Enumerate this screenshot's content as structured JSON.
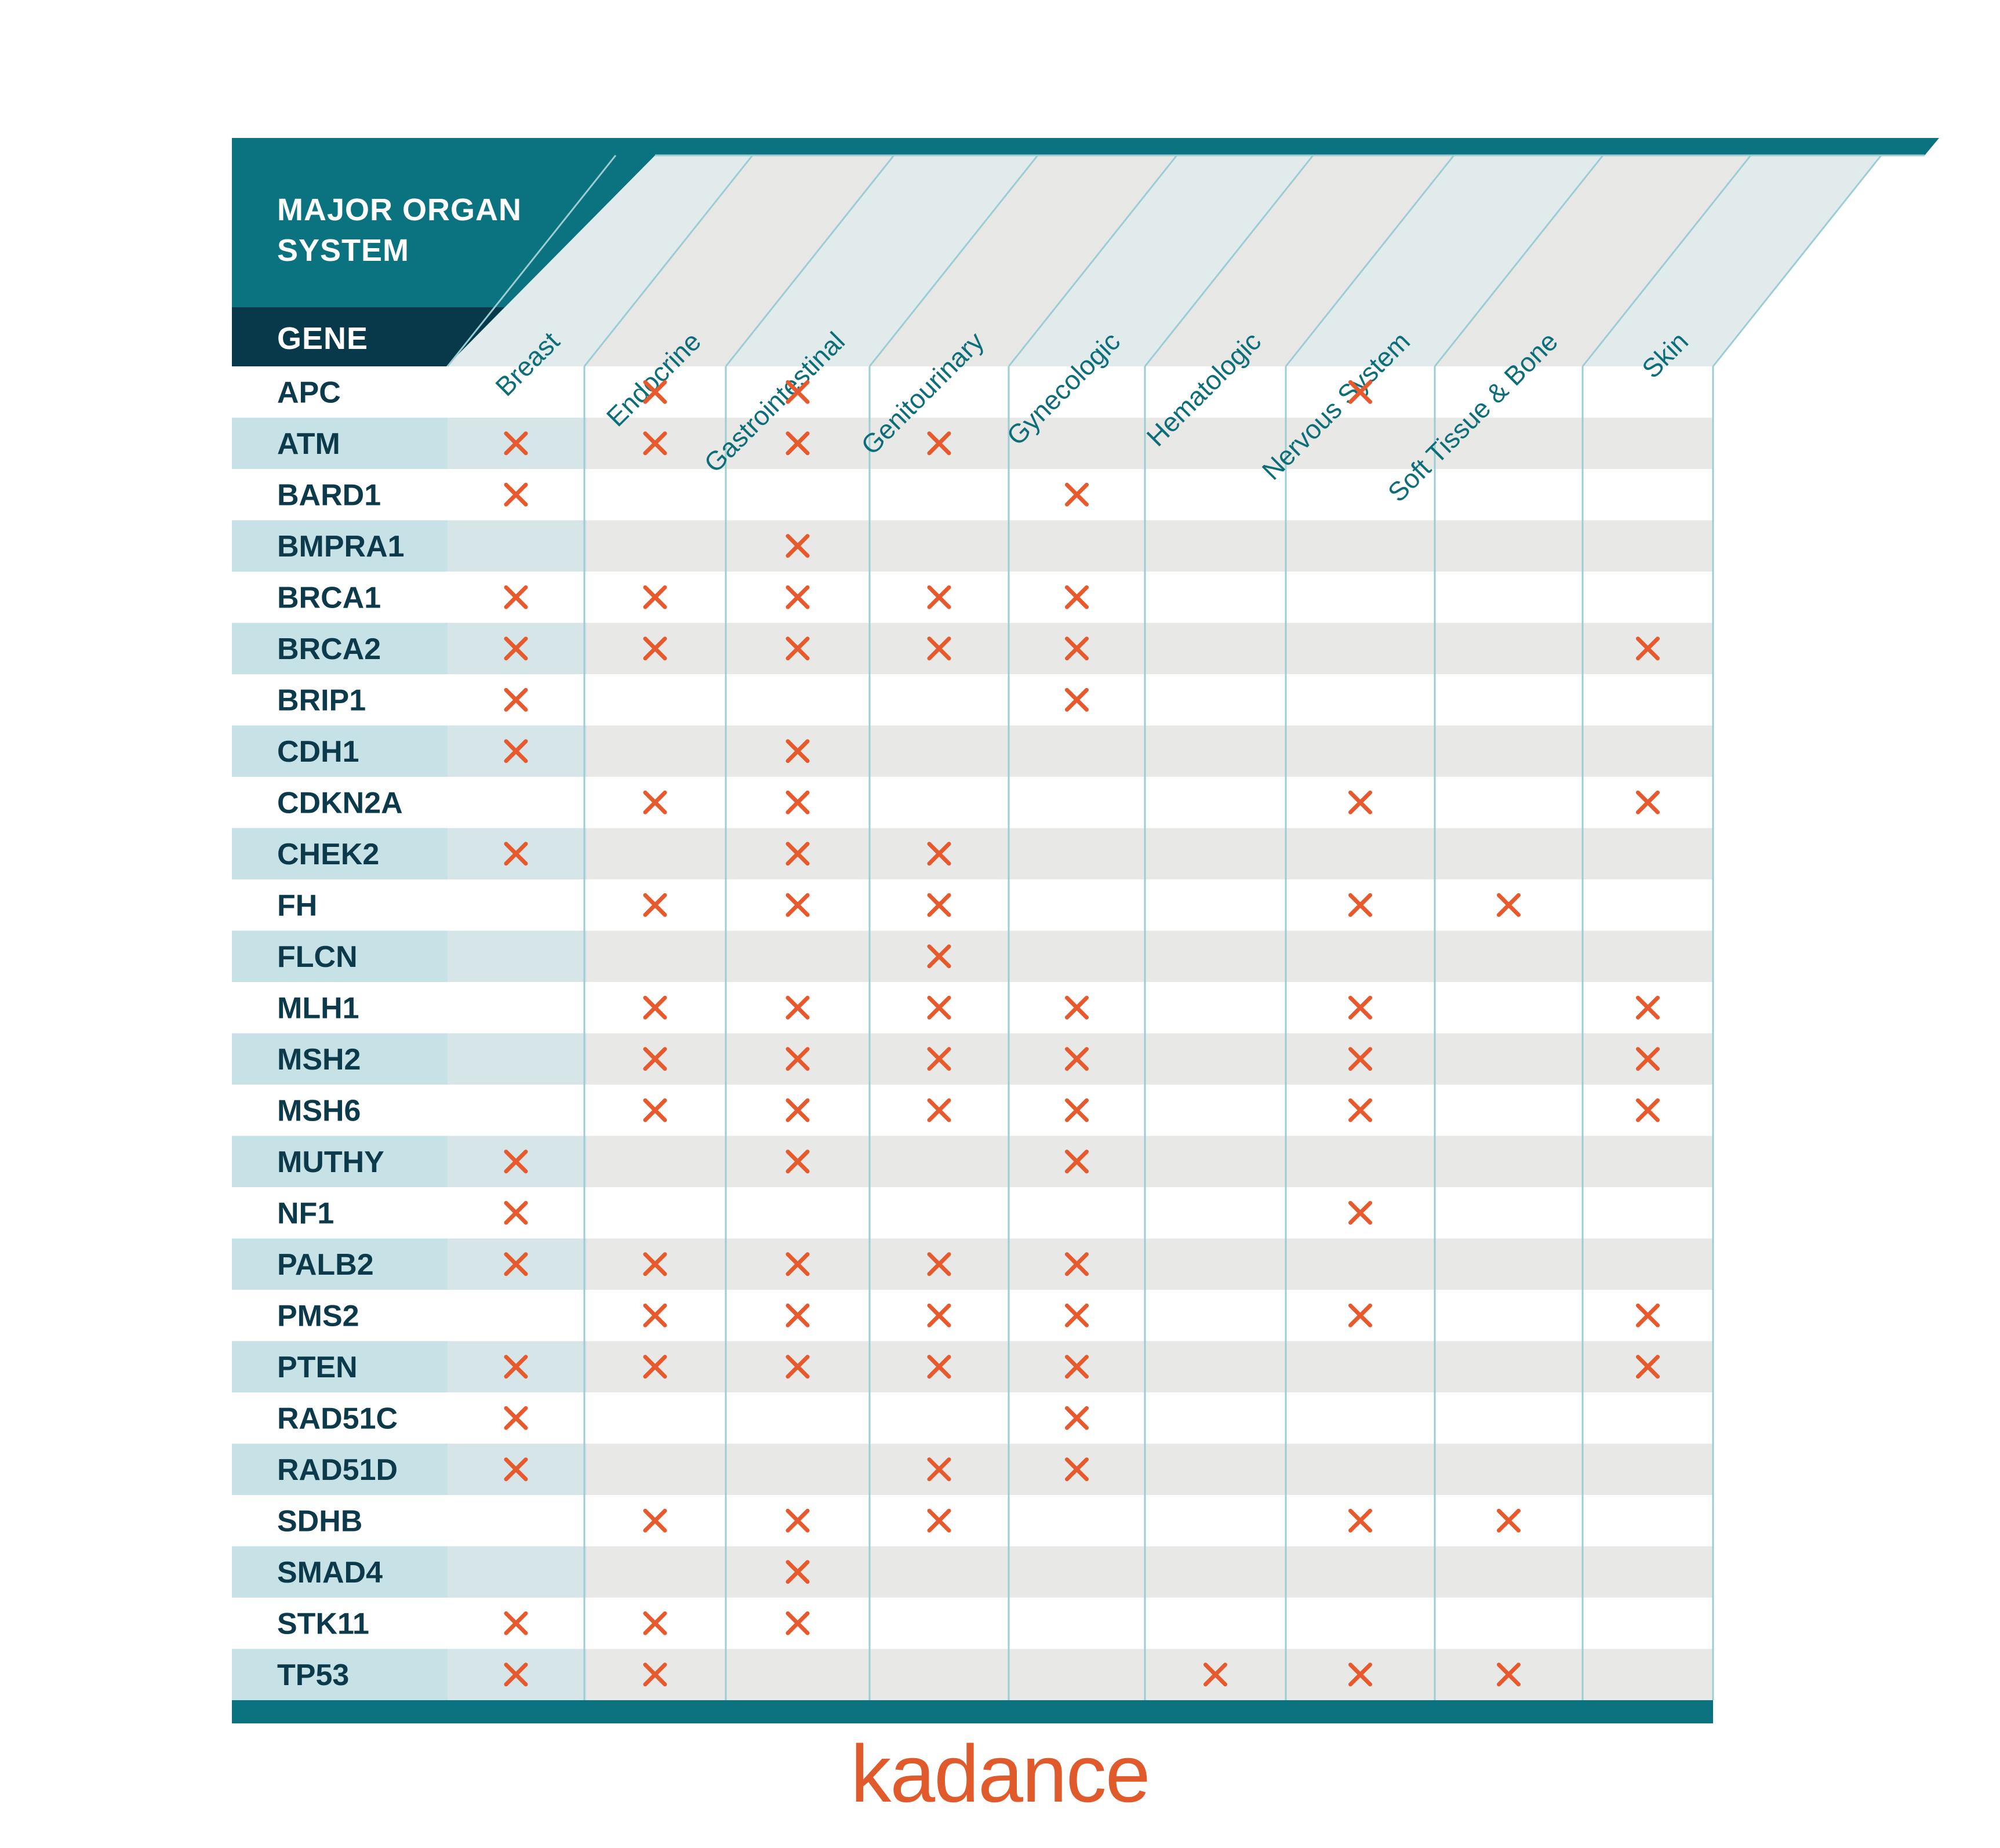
{
  "chart_data": {
    "type": "table",
    "header": {
      "title_line1": "MAJOR ORGAN",
      "title_line2": "SYSTEM",
      "row_header": "GENE"
    },
    "columns": [
      "Breast",
      "Endocrine",
      "Gastrointestinal",
      "Genitourinary",
      "Gynecologic",
      "Hematologic",
      "Nervous System",
      "Soft Tissue & Bone",
      "Skin"
    ],
    "rows": [
      {
        "gene": "APC",
        "marks": [
          0,
          1,
          1,
          0,
          0,
          0,
          1,
          0,
          0
        ]
      },
      {
        "gene": "ATM",
        "marks": [
          1,
          1,
          1,
          1,
          0,
          0,
          0,
          0,
          0
        ]
      },
      {
        "gene": "BARD1",
        "marks": [
          1,
          0,
          0,
          0,
          1,
          0,
          0,
          0,
          0
        ]
      },
      {
        "gene": "BMPRA1",
        "marks": [
          0,
          0,
          1,
          0,
          0,
          0,
          0,
          0,
          0
        ]
      },
      {
        "gene": "BRCA1",
        "marks": [
          1,
          1,
          1,
          1,
          1,
          0,
          0,
          0,
          0
        ]
      },
      {
        "gene": "BRCA2",
        "marks": [
          1,
          1,
          1,
          1,
          1,
          0,
          0,
          0,
          1
        ]
      },
      {
        "gene": "BRIP1",
        "marks": [
          1,
          0,
          0,
          0,
          1,
          0,
          0,
          0,
          0
        ]
      },
      {
        "gene": "CDH1",
        "marks": [
          1,
          0,
          1,
          0,
          0,
          0,
          0,
          0,
          0
        ]
      },
      {
        "gene": "CDKN2A",
        "marks": [
          0,
          1,
          1,
          0,
          0,
          0,
          1,
          0,
          1
        ]
      },
      {
        "gene": "CHEK2",
        "marks": [
          1,
          0,
          1,
          1,
          0,
          0,
          0,
          0,
          0
        ]
      },
      {
        "gene": "FH",
        "marks": [
          0,
          1,
          1,
          1,
          0,
          0,
          1,
          1,
          0
        ]
      },
      {
        "gene": "FLCN",
        "marks": [
          0,
          0,
          0,
          1,
          0,
          0,
          0,
          0,
          0
        ]
      },
      {
        "gene": "MLH1",
        "marks": [
          0,
          1,
          1,
          1,
          1,
          0,
          1,
          0,
          1
        ]
      },
      {
        "gene": "MSH2",
        "marks": [
          0,
          1,
          1,
          1,
          1,
          0,
          1,
          0,
          1
        ]
      },
      {
        "gene": "MSH6",
        "marks": [
          0,
          1,
          1,
          1,
          1,
          0,
          1,
          0,
          1
        ]
      },
      {
        "gene": "MUTHY",
        "marks": [
          1,
          0,
          1,
          0,
          1,
          0,
          0,
          0,
          0
        ]
      },
      {
        "gene": "NF1",
        "marks": [
          1,
          0,
          0,
          0,
          0,
          0,
          1,
          0,
          0
        ]
      },
      {
        "gene": "PALB2",
        "marks": [
          1,
          1,
          1,
          1,
          1,
          0,
          0,
          0,
          0
        ]
      },
      {
        "gene": "PMS2",
        "marks": [
          0,
          1,
          1,
          1,
          1,
          0,
          1,
          0,
          1
        ]
      },
      {
        "gene": "PTEN",
        "marks": [
          1,
          1,
          1,
          1,
          1,
          0,
          0,
          0,
          1
        ]
      },
      {
        "gene": "RAD51C",
        "marks": [
          1,
          0,
          0,
          0,
          1,
          0,
          0,
          0,
          0
        ]
      },
      {
        "gene": "RAD51D",
        "marks": [
          1,
          0,
          0,
          1,
          1,
          0,
          0,
          0,
          0
        ]
      },
      {
        "gene": "SDHB",
        "marks": [
          0,
          1,
          1,
          1,
          0,
          0,
          1,
          1,
          0
        ]
      },
      {
        "gene": "SMAD4",
        "marks": [
          0,
          0,
          1,
          0,
          0,
          0,
          0,
          0,
          0
        ]
      },
      {
        "gene": "STK11",
        "marks": [
          1,
          1,
          1,
          0,
          0,
          0,
          0,
          0,
          0
        ]
      },
      {
        "gene": "TP53",
        "marks": [
          1,
          1,
          0,
          0,
          0,
          1,
          1,
          1,
          0
        ]
      }
    ],
    "mark_symbol": "✕"
  },
  "colors": {
    "teal": "#0b7380",
    "dark_navy": "#07394a",
    "row_tint": "#c6e2e7",
    "row_gray": "#e8e8e6",
    "header_band_light": "#e1ebec",
    "header_band_gray": "#e7e7e5",
    "grid_line": "#9ccdd5",
    "mark": "#e65a2e",
    "gene_text": "#0c3a4a",
    "column_text": "#0d6e79",
    "brand": "#e05a2b"
  },
  "brand": {
    "logo_text": "kadance"
  }
}
